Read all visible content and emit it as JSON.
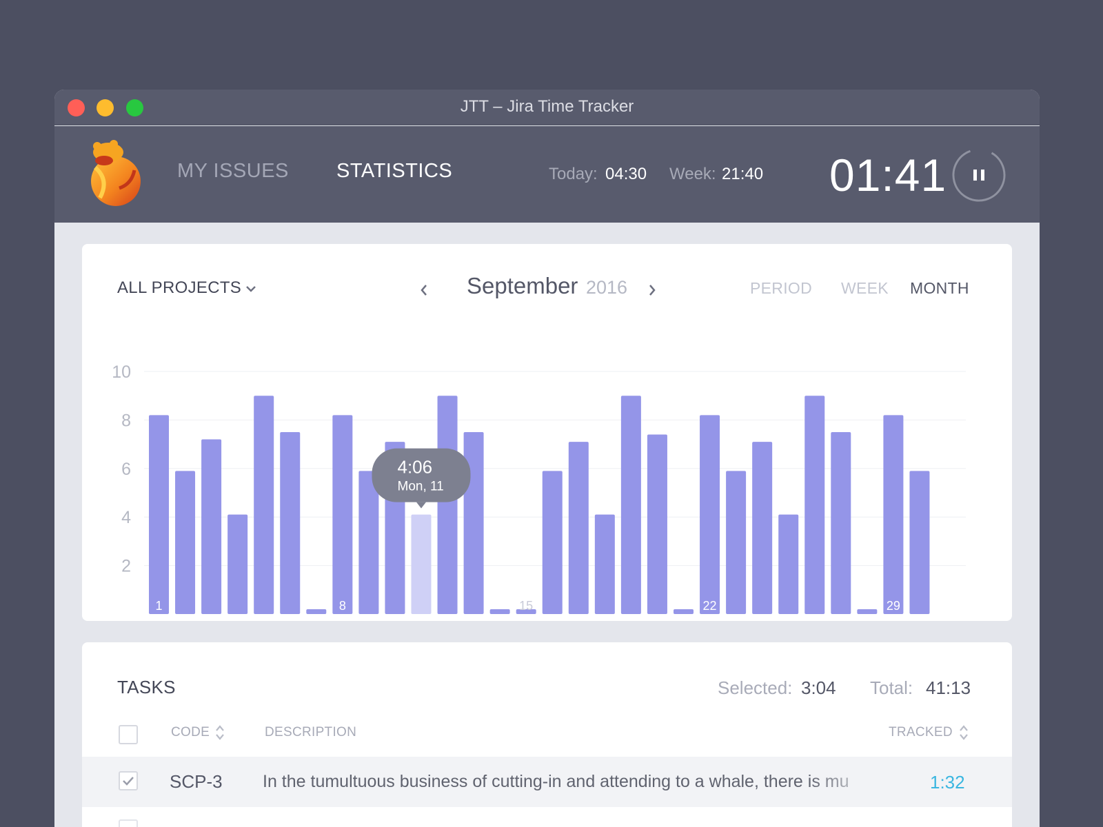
{
  "window": {
    "title": "JTT – Jira Time Tracker"
  },
  "header": {
    "nav": [
      {
        "label": "MY ISSUES",
        "active": false
      },
      {
        "label": "STATISTICS",
        "active": true
      }
    ],
    "today_label": "Today:",
    "today_value": "04:30",
    "week_label": "Week:",
    "week_value": "21:40",
    "timer": "01:41",
    "pause_icon": "pause-icon"
  },
  "filters": {
    "project": "ALL PROJECTS",
    "month": "September",
    "year": "2016",
    "ranges": [
      "PERIOD",
      "WEEK",
      "MONTH"
    ],
    "active_range": "MONTH"
  },
  "chart_data": {
    "type": "bar",
    "x": [
      1,
      2,
      3,
      4,
      5,
      6,
      7,
      8,
      9,
      10,
      11,
      12,
      13,
      14,
      15,
      16,
      17,
      18,
      19,
      20,
      21,
      22,
      23,
      24,
      25,
      26,
      27,
      28,
      29,
      30
    ],
    "values": [
      8.2,
      5.9,
      7.2,
      4.1,
      9.0,
      7.5,
      0.2,
      8.2,
      5.9,
      7.1,
      4.1,
      9.0,
      7.5,
      0.2,
      0.2,
      5.9,
      7.1,
      4.1,
      9.0,
      7.4,
      0.2,
      8.2,
      5.9,
      7.1,
      4.1,
      9.0,
      7.5,
      0.2,
      8.2,
      5.9
    ],
    "x_tick_labels": [
      "1",
      "8",
      "15",
      "22",
      "29"
    ],
    "y_ticks": [
      "2",
      "4",
      "6",
      "8",
      "10"
    ],
    "ylim": [
      0,
      10
    ],
    "highlighted_index": 10,
    "tooltip": {
      "value": "4:06",
      "date": "Mon, 11"
    },
    "grid": true,
    "bar_color": "#9495e8",
    "highlight_color": "#cfd0f6"
  },
  "tasks": {
    "title": "TASKS",
    "selected_label": "Selected:",
    "selected_value": "3:04",
    "total_label": "Total:",
    "total_value": "41:13",
    "columns": {
      "code": "CODE",
      "description": "DESCRIPTION",
      "tracked": "TRACKED"
    },
    "rows": [
      {
        "checked": true,
        "code": "SCP-3",
        "description": "In the tumultuous business of cutting-in and attending to a whale, there is mu",
        "tracked": "1:32"
      }
    ]
  },
  "colors": {
    "accent": "#9495e8",
    "tracked": "#3ab6e0",
    "header": "#585b6d"
  }
}
